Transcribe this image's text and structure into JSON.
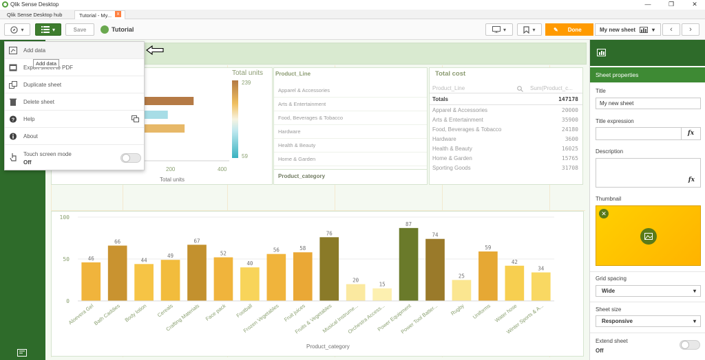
{
  "window": {
    "title": "Qlik Sense Desktop",
    "minimize": "—",
    "maximize": "❐",
    "close": "✕"
  },
  "tabs": [
    {
      "label": "Qlik Sense Desktop hub"
    },
    {
      "label": "Tutorial - My..."
    }
  ],
  "tab_close": "x",
  "toolbar": {
    "save_label": "Save",
    "app_name": "Tutorial",
    "done_label": "Done",
    "sheet_name": "My new sheet"
  },
  "menu": {
    "items": [
      {
        "label": "Add data"
      },
      {
        "label": "Export sheet to PDF"
      },
      {
        "label": "Duplicate sheet"
      },
      {
        "label": "Delete sheet"
      },
      {
        "label": "Help"
      },
      {
        "label": "About"
      },
      {
        "label": "Touch screen mode"
      }
    ],
    "touch_state": "Off",
    "tooltip": "Add data"
  },
  "bar_small": {
    "xlabel": "Total units",
    "ticks": [
      "200",
      "400"
    ],
    "values": [
      20,
      230,
      130,
      195
    ]
  },
  "legend": {
    "title": "Total units",
    "max": "239",
    "min": "59"
  },
  "product_line": {
    "title": "Product_Line",
    "items": [
      "Apparel & Accessories",
      "Arts & Entertainment",
      "Food, Beverages & Tobacco",
      "Hardware",
      "Health & Beauty",
      "Home & Garden"
    ],
    "footer": "Product_category"
  },
  "total_cost": {
    "title": "Total cost",
    "col1": "Product_Line",
    "col2": "Sum(Product_c...",
    "totals_label": "Totals",
    "totals_value": "147178",
    "rows": [
      {
        "name": "Apparel & Accessories",
        "value": "20000"
      },
      {
        "name": "Arts & Entertainment",
        "value": "35900"
      },
      {
        "name": "Food, Beverages & Tobacco",
        "value": "24180"
      },
      {
        "name": "Hardware",
        "value": "3600"
      },
      {
        "name": "Health & Beauty",
        "value": "16025"
      },
      {
        "name": "Home & Garden",
        "value": "15765"
      },
      {
        "name": "Sporting Goods",
        "value": "31708"
      }
    ]
  },
  "chart_data": {
    "type": "bar",
    "xlabel": "Product_category",
    "ylabel": "",
    "ylim": [
      0,
      100
    ],
    "yticks": [
      "0",
      "50",
      "100"
    ],
    "categories": [
      "Aloevera Gel",
      "Bath Caddies",
      "Body lotion",
      "Cereals",
      "Crafting Materials",
      "Face pack",
      "Football",
      "Frozen Vegetables",
      "Fruit juices",
      "Fruits & Vegetables",
      "Musical Instrume...",
      "Orchestra Access...",
      "Power Equipment",
      "Power Tool Batter...",
      "Rugby",
      "Uniforms",
      "Water hose",
      "Winter Sports & A..."
    ],
    "values": [
      46,
      66,
      44,
      49,
      67,
      52,
      40,
      56,
      58,
      76,
      20,
      15,
      87,
      74,
      25,
      59,
      42,
      34
    ],
    "colors": [
      "#f0b43c",
      "#c99330",
      "#f6c445",
      "#f2bc3c",
      "#c3912e",
      "#f0b43c",
      "#f8d45a",
      "#f0b43c",
      "#eaa836",
      "#8a7a28",
      "#fbe9a0",
      "#fdf0b0",
      "#6a7a2a",
      "#9a7a2a",
      "#fbe690",
      "#e6a834",
      "#f7cf50",
      "#f9d862"
    ]
  },
  "properties": {
    "header": "Sheet properties",
    "title_label": "Title",
    "title_value": "My new sheet",
    "title_expr_label": "Title expression",
    "description_label": "Description",
    "thumbnail_label": "Thumbnail",
    "grid_label": "Grid spacing",
    "grid_value": "Wide",
    "size_label": "Sheet size",
    "size_value": "Responsive",
    "extend_label": "Extend sheet",
    "extend_value": "Off",
    "fx": "fx"
  },
  "colors": {
    "accent_green": "#3e7d2e",
    "dark_green": "#2e6b2a",
    "done_orange": "#ff9a00"
  }
}
